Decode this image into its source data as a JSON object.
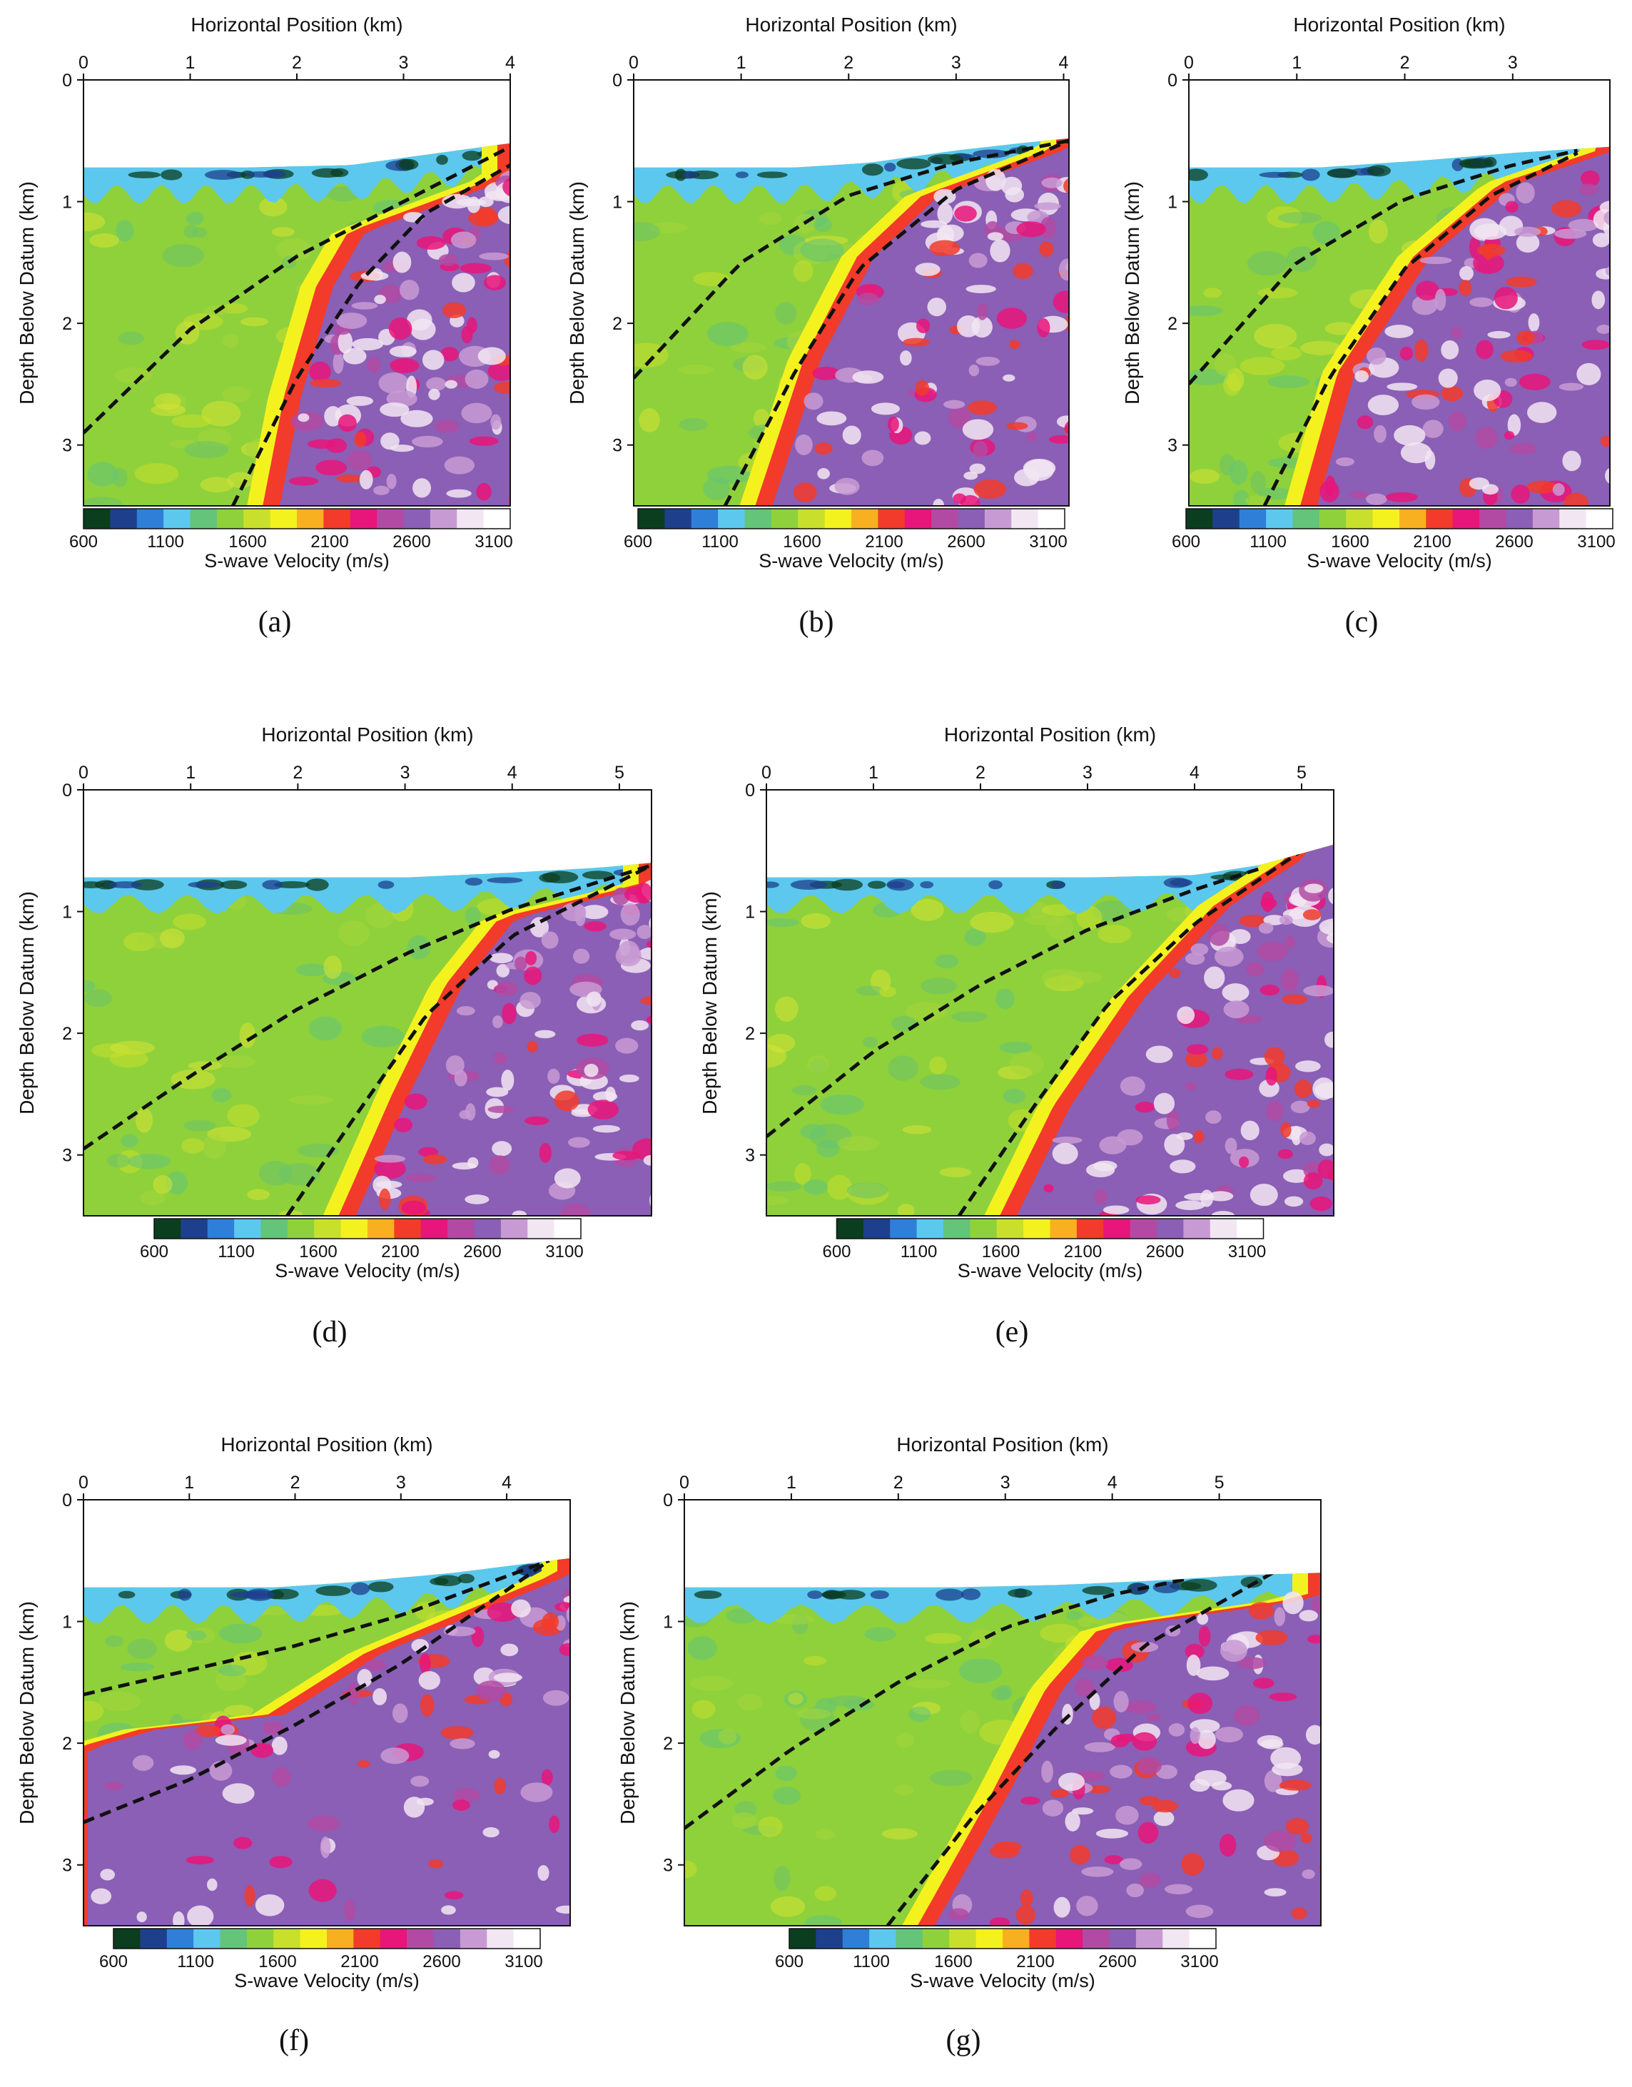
{
  "colors": {
    "colormap": [
      "#0b3d1f",
      "#1e3f8c",
      "#2f7fd8",
      "#5cc8ee",
      "#63c47a",
      "#8fd13b",
      "#c8e02c",
      "#f4f21e",
      "#f9b020",
      "#f23b2a",
      "#e8157a",
      "#b24aa3",
      "#8a5fb5",
      "#c89ad3",
      "#f2e6f2",
      "#ffffff"
    ]
  },
  "chart_data": [
    {
      "id": "a",
      "type": "heatmap",
      "sublabel": "(a)",
      "xlabel": "Horizontal Position (km)",
      "ylabel": "Depth Below Datum (km)",
      "xlim": [
        0,
        4.0
      ],
      "ylim": [
        0,
        3.5
      ],
      "xticks": [
        0,
        1,
        2,
        3,
        4
      ],
      "yticks": [
        0,
        1,
        2,
        3
      ],
      "colorbar": {
        "label": "S-wave Velocity (m/s)",
        "ticks": [
          600,
          1100,
          1600,
          2100,
          2600,
          3100
        ],
        "range": [
          600,
          3200
        ]
      },
      "dashed_lines": [
        [
          [
            0,
            2.9
          ],
          [
            1,
            2.05
          ],
          [
            2,
            1.45
          ],
          [
            3,
            1.0
          ],
          [
            4,
            0.55
          ]
        ],
        [
          [
            1.4,
            3.5
          ],
          [
            2.0,
            2.45
          ],
          [
            2.6,
            1.65
          ],
          [
            3.2,
            1.1
          ],
          [
            4,
            0.7
          ]
        ]
      ],
      "velocity_boundary": [
        [
          1.8,
          3.5
        ],
        [
          2.0,
          2.6
        ],
        [
          2.3,
          1.7
        ],
        [
          2.6,
          1.25
        ],
        [
          4,
          0.8
        ]
      ],
      "surface": [
        [
          0,
          0.72
        ],
        [
          1.5,
          0.72
        ],
        [
          2.5,
          0.7
        ],
        [
          3,
          0.64
        ],
        [
          3.5,
          0.58
        ],
        [
          4,
          0.52
        ]
      ]
    },
    {
      "id": "b",
      "type": "heatmap",
      "sublabel": "(b)",
      "xlabel": "Horizontal Position (km)",
      "ylabel": "Depth Below Datum (km)",
      "xlim": [
        0,
        4.05
      ],
      "ylim": [
        0,
        3.5
      ],
      "xticks": [
        0,
        1,
        2,
        3,
        4
      ],
      "yticks": [
        0,
        1,
        2,
        3
      ],
      "colorbar": {
        "label": "S-wave Velocity (m/s)",
        "ticks": [
          600,
          1100,
          1600,
          2100,
          2600,
          3100
        ],
        "range": [
          600,
          3200
        ]
      },
      "dashed_lines": [
        [
          [
            0,
            2.45
          ],
          [
            1,
            1.5
          ],
          [
            2,
            0.95
          ],
          [
            3,
            0.68
          ],
          [
            4.05,
            0.5
          ]
        ],
        [
          [
            0.85,
            3.5
          ],
          [
            1.5,
            2.4
          ],
          [
            2.1,
            1.55
          ],
          [
            3,
            0.9
          ],
          [
            4.05,
            0.5
          ]
        ]
      ],
      "velocity_boundary": [
        [
          1.25,
          3.5
        ],
        [
          1.7,
          2.3
        ],
        [
          2.2,
          1.45
        ],
        [
          2.8,
          0.95
        ],
        [
          4.05,
          0.55
        ]
      ],
      "surface": [
        [
          0,
          0.72
        ],
        [
          1.5,
          0.72
        ],
        [
          2.2,
          0.68
        ],
        [
          3,
          0.58
        ],
        [
          3.6,
          0.52
        ],
        [
          4.05,
          0.48
        ]
      ]
    },
    {
      "id": "c",
      "type": "heatmap",
      "sublabel": "(c)",
      "xlabel": "Horizontal Position (km)",
      "ylabel": "Depth Below Datum (km)",
      "xlim": [
        0,
        3.9
      ],
      "ylim": [
        0,
        3.5
      ],
      "xticks": [
        0,
        1,
        2,
        3
      ],
      "yticks": [
        0,
        1,
        2,
        3
      ],
      "colorbar": {
        "label": "S-wave Velocity (m/s)",
        "ticks": [
          600,
          1100,
          1600,
          2100,
          2600,
          3100
        ],
        "range": [
          600,
          3200
        ]
      },
      "dashed_lines": [
        [
          [
            0,
            2.5
          ],
          [
            1,
            1.5
          ],
          [
            2,
            0.98
          ],
          [
            3,
            0.7
          ],
          [
            3.6,
            0.58
          ]
        ],
        [
          [
            0.7,
            3.5
          ],
          [
            1.3,
            2.45
          ],
          [
            2,
            1.55
          ],
          [
            2.8,
            0.95
          ],
          [
            3.6,
            0.6
          ]
        ]
      ],
      "velocity_boundary": [
        [
          1.15,
          3.5
        ],
        [
          1.5,
          2.4
        ],
        [
          2.2,
          1.45
        ],
        [
          3.0,
          0.85
        ],
        [
          3.9,
          0.58
        ]
      ],
      "surface": [
        [
          0,
          0.72
        ],
        [
          1.2,
          0.72
        ],
        [
          2.2,
          0.66
        ],
        [
          3,
          0.6
        ],
        [
          3.9,
          0.55
        ]
      ]
    },
    {
      "id": "d",
      "type": "heatmap",
      "sublabel": "(d)",
      "xlabel": "Horizontal Position (km)",
      "ylabel": "Depth Below Datum (km)",
      "xlim": [
        0,
        5.3
      ],
      "ylim": [
        0,
        3.5
      ],
      "xticks": [
        0,
        1,
        2,
        3,
        4,
        5
      ],
      "yticks": [
        0,
        1,
        2,
        3
      ],
      "colorbar": {
        "label": "S-wave Velocity (m/s)",
        "ticks": [
          600,
          1100,
          1600,
          2100,
          2600,
          3100
        ],
        "range": [
          600,
          3200
        ]
      },
      "dashed_lines": [
        [
          [
            0,
            2.95
          ],
          [
            1,
            2.35
          ],
          [
            2,
            1.8
          ],
          [
            3,
            1.35
          ],
          [
            4,
            0.98
          ],
          [
            5.3,
            0.62
          ]
        ],
        [
          [
            1.9,
            3.5
          ],
          [
            2.6,
            2.6
          ],
          [
            3.2,
            1.85
          ],
          [
            4,
            1.2
          ],
          [
            5.3,
            0.62
          ]
        ]
      ],
      "velocity_boundary": [
        [
          2.5,
          3.5
        ],
        [
          3.0,
          2.5
        ],
        [
          3.5,
          1.6
        ],
        [
          4.0,
          1.05
        ],
        [
          5.3,
          0.78
        ]
      ],
      "surface": [
        [
          0,
          0.72
        ],
        [
          2,
          0.72
        ],
        [
          3,
          0.72
        ],
        [
          4,
          0.68
        ],
        [
          4.8,
          0.64
        ],
        [
          5.3,
          0.6
        ]
      ]
    },
    {
      "id": "e",
      "type": "heatmap",
      "sublabel": "(e)",
      "xlabel": "Horizontal Position (km)",
      "ylabel": "Depth Below Datum (km)",
      "xlim": [
        0,
        5.3
      ],
      "ylim": [
        0,
        3.5
      ],
      "xticks": [
        0,
        1,
        2,
        3,
        4,
        5
      ],
      "yticks": [
        0,
        1,
        2,
        3
      ],
      "colorbar": {
        "label": "S-wave Velocity (m/s)",
        "ticks": [
          600,
          1100,
          1600,
          2100,
          2600,
          3100
        ],
        "range": [
          600,
          3200
        ]
      },
      "dashed_lines": [
        [
          [
            0,
            2.85
          ],
          [
            1,
            2.15
          ],
          [
            2,
            1.6
          ],
          [
            3,
            1.15
          ],
          [
            4,
            0.82
          ],
          [
            4.6,
            0.65
          ]
        ],
        [
          [
            1.8,
            3.5
          ],
          [
            2.5,
            2.6
          ],
          [
            3.2,
            1.75
          ],
          [
            4,
            1.1
          ],
          [
            5,
            0.5
          ]
        ]
      ],
      "velocity_boundary": [
        [
          2.3,
          3.5
        ],
        [
          2.8,
          2.6
        ],
        [
          3.5,
          1.7
        ],
        [
          4.3,
          0.95
        ],
        [
          5.0,
          0.55
        ]
      ],
      "surface": [
        [
          0,
          0.72
        ],
        [
          2,
          0.72
        ],
        [
          3,
          0.72
        ],
        [
          4,
          0.7
        ],
        [
          4.6,
          0.62
        ],
        [
          5.3,
          0.45
        ]
      ]
    },
    {
      "id": "f",
      "type": "heatmap",
      "sublabel": "(f)",
      "xlabel": "Horizontal Position (km)",
      "ylabel": "Depth Below Datum (km)",
      "xlim": [
        0,
        4.6
      ],
      "ylim": [
        0,
        3.5
      ],
      "xticks": [
        0,
        1,
        2,
        3,
        4
      ],
      "yticks": [
        0,
        1,
        2,
        3
      ],
      "colorbar": {
        "label": "S-wave Velocity (m/s)",
        "ticks": [
          600,
          1100,
          1600,
          2100,
          2600,
          3100
        ],
        "range": [
          600,
          3200
        ]
      },
      "dashed_lines": [
        [
          [
            0,
            1.6
          ],
          [
            1,
            1.4
          ],
          [
            2,
            1.2
          ],
          [
            3,
            0.95
          ],
          [
            4.4,
            0.5
          ]
        ],
        [
          [
            0,
            2.65
          ],
          [
            1,
            2.3
          ],
          [
            2,
            1.85
          ],
          [
            3,
            1.35
          ],
          [
            4.4,
            0.5
          ]
        ]
      ],
      "velocity_boundary": [
        [
          0,
          2.05
        ],
        [
          0.8,
          1.85
        ],
        [
          1.8,
          1.8
        ],
        [
          2.8,
          1.25
        ],
        [
          4.6,
          0.6
        ]
      ],
      "surface": [
        [
          0,
          0.72
        ],
        [
          1.8,
          0.72
        ],
        [
          2.5,
          0.68
        ],
        [
          3.5,
          0.6
        ],
        [
          4.6,
          0.48
        ]
      ]
    },
    {
      "id": "g",
      "type": "heatmap",
      "sublabel": "(g)",
      "xlabel": "Horizontal Position (km)",
      "ylabel": "Depth Below Datum (km)",
      "xlim": [
        0,
        5.95
      ],
      "ylim": [
        0,
        3.5
      ],
      "xticks": [
        0,
        1,
        2,
        3,
        4,
        5
      ],
      "yticks": [
        0,
        1,
        2,
        3
      ],
      "colorbar": {
        "label": "S-wave Velocity (m/s)",
        "ticks": [
          600,
          1100,
          1600,
          2100,
          2600,
          3100
        ],
        "range": [
          600,
          3200
        ]
      },
      "dashed_lines": [
        [
          [
            0,
            2.7
          ],
          [
            1,
            2.05
          ],
          [
            2,
            1.5
          ],
          [
            3,
            1.05
          ],
          [
            4,
            0.78
          ],
          [
            4.7,
            0.65
          ]
        ],
        [
          [
            1.9,
            3.5
          ],
          [
            2.7,
            2.6
          ],
          [
            3.5,
            1.85
          ],
          [
            4.3,
            1.2
          ],
          [
            5.5,
            0.6
          ]
        ]
      ],
      "velocity_boundary": [
        [
          2.3,
          3.5
        ],
        [
          3.0,
          2.4
        ],
        [
          3.5,
          1.55
        ],
        [
          4.0,
          1.05
        ],
        [
          5.95,
          0.8
        ]
      ],
      "surface": [
        [
          0,
          0.72
        ],
        [
          2.5,
          0.72
        ],
        [
          3.5,
          0.7
        ],
        [
          4.5,
          0.66
        ],
        [
          5.2,
          0.62
        ],
        [
          5.95,
          0.6
        ]
      ]
    }
  ]
}
